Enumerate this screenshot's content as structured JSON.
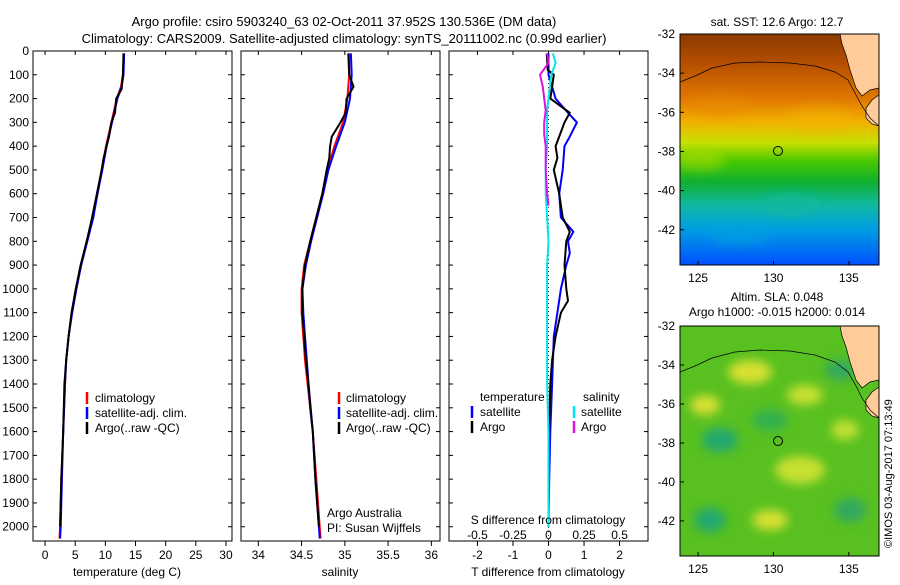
{
  "header": {
    "title_line1": "Argo profile: csiro 5903240_63 02-Oct-2011 37.952S 130.536E (DM data)",
    "title_line2": "Climatology: CARS2009. Satellite-adjusted climatology: synTS_20111002.nc (0.99d earlier)"
  },
  "colors": {
    "climatology": "#ff0000",
    "satellite": "#0000ff",
    "argo": "#000000",
    "sal_satellite": "#00e5ee",
    "sal_argo": "#e010e0",
    "land": "#ffcc99"
  },
  "chart_data": [
    {
      "type": "line",
      "title": "",
      "xlabel": "temperature (deg C)",
      "ylabel": "",
      "xlim": [
        -2,
        31
      ],
      "ylim": [
        2060,
        0
      ],
      "xticks": [
        "0",
        "5",
        "10",
        "15",
        "20",
        "25",
        "30"
      ],
      "xtick_values": [
        0,
        5,
        10,
        15,
        20,
        25,
        30
      ],
      "yticks": [
        "0",
        "100",
        "200",
        "300",
        "400",
        "500",
        "600",
        "700",
        "800",
        "900",
        "1000",
        "1100",
        "1200",
        "1300",
        "1400",
        "1500",
        "1600",
        "1700",
        "1800",
        "1900",
        "2000"
      ],
      "legend": [
        "climatology",
        "satellite-adj. clim.",
        "Argo(..raw -QC)"
      ],
      "series": [
        {
          "name": "climatology",
          "color": "#ff0000",
          "depth": [
            10,
            100,
            150,
            200,
            300,
            400,
            500,
            600,
            700,
            800,
            900,
            1000,
            1100,
            1200,
            1300,
            1400,
            1600,
            1800,
            2000,
            2050
          ],
          "values": [
            13.1,
            12.9,
            12.6,
            11.9,
            11.0,
            10.1,
            9.4,
            8.7,
            7.9,
            6.9,
            6.0,
            5.1,
            4.4,
            3.9,
            3.5,
            3.3,
            3.0,
            2.7,
            2.5,
            2.4
          ]
        },
        {
          "name": "satellite-adj. clim.",
          "color": "#0000ff",
          "depth": [
            10,
            100,
            150,
            200,
            300,
            400,
            500,
            600,
            700,
            800,
            900,
            1000,
            1100,
            1200,
            1300,
            1400,
            1600,
            1800,
            2000,
            2050
          ],
          "values": [
            13.1,
            13.0,
            12.7,
            12.0,
            11.1,
            10.2,
            9.5,
            8.7,
            8.0,
            7.0,
            6.0,
            5.2,
            4.5,
            3.9,
            3.5,
            3.3,
            3.0,
            2.8,
            2.6,
            2.5
          ]
        },
        {
          "name": "Argo(..raw -QC)",
          "color": "#000000",
          "depth": [
            10,
            100,
            160,
            200,
            260,
            300,
            360,
            400,
            450,
            500,
            550,
            600,
            700,
            800,
            900,
            1000,
            1100,
            1200,
            1300,
            1400,
            1600,
            1800,
            2000
          ],
          "values": [
            13.0,
            12.9,
            12.7,
            11.8,
            11.6,
            11.0,
            10.6,
            10.2,
            9.7,
            9.4,
            9.0,
            8.6,
            7.8,
            6.9,
            5.9,
            5.1,
            4.4,
            3.9,
            3.5,
            3.2,
            3.0,
            2.7,
            2.5
          ]
        }
      ]
    },
    {
      "type": "line",
      "title": "",
      "xlabel": "salinity",
      "ylabel": "",
      "xlim": [
        33.8,
        36.1
      ],
      "ylim": [
        2060,
        0
      ],
      "xticks": [
        "34",
        "34.5",
        "35",
        "35.5",
        "36"
      ],
      "xtick_values": [
        34,
        34.5,
        35,
        35.5,
        36
      ],
      "legend": [
        "climatology",
        "satellite-adj. clim.",
        "Argo(..raw -QC)"
      ],
      "annotation_line1": "Argo Australia",
      "annotation_line2": "PI: Susan Wijffels",
      "series": [
        {
          "name": "climatology",
          "color": "#ff0000",
          "depth": [
            10,
            100,
            200,
            300,
            400,
            500,
            600,
            700,
            800,
            900,
            1000,
            1100,
            1200,
            1300,
            1400,
            1500,
            1600,
            1800,
            2000,
            2050
          ],
          "values": [
            35.05,
            35.05,
            35.03,
            34.98,
            34.88,
            34.8,
            34.74,
            34.67,
            34.6,
            34.53,
            34.5,
            34.5,
            34.52,
            34.54,
            34.57,
            34.6,
            34.63,
            34.67,
            34.71,
            34.72
          ]
        },
        {
          "name": "satellite-adj. clim.",
          "color": "#0000ff",
          "depth": [
            10,
            100,
            200,
            300,
            400,
            500,
            600,
            700,
            800,
            900,
            1000,
            1100,
            1200,
            1300,
            1400,
            1500,
            1600,
            1800,
            2000,
            2050
          ],
          "values": [
            35.07,
            35.08,
            35.06,
            35.0,
            34.9,
            34.81,
            34.75,
            34.68,
            34.61,
            34.55,
            34.51,
            34.52,
            34.54,
            34.56,
            34.58,
            34.6,
            34.63,
            34.66,
            34.7,
            34.71
          ]
        },
        {
          "name": "Argo(..raw -QC)",
          "color": "#000000",
          "depth": [
            10,
            100,
            150,
            200,
            260,
            300,
            360,
            400,
            450,
            500,
            600,
            700,
            800,
            900,
            1000,
            1100,
            1200,
            1300,
            1400,
            1600,
            1800,
            2000
          ],
          "values": [
            35.04,
            35.05,
            35.1,
            35.02,
            35.01,
            34.95,
            34.85,
            34.83,
            34.82,
            34.79,
            34.74,
            34.67,
            34.6,
            34.54,
            34.51,
            34.51,
            34.53,
            34.55,
            34.58,
            34.63,
            34.66,
            34.7
          ]
        }
      ]
    },
    {
      "type": "line",
      "title": "",
      "xlabel": "T difference from climatology",
      "xlabel_top": "S difference from climatology",
      "ylabel": "",
      "xlim": [
        -2.8,
        2.8
      ],
      "ylim": [
        2060,
        0
      ],
      "xticks": [
        "-2",
        "-1",
        "0",
        "1",
        "2"
      ],
      "xtick_values": [
        -2,
        -1,
        0,
        1,
        2
      ],
      "top_xticks": [
        "-0.5",
        "-0.25",
        "0",
        "0.25",
        "0.5"
      ],
      "top_xtick_values": [
        -0.5,
        -0.25,
        0,
        0.25,
        0.5
      ],
      "legend_temperature_title": "temperature",
      "legend_salinity_title": "salinity",
      "legend_temperature": [
        "satellite",
        "Argo"
      ],
      "legend_salinity": [
        "satellite",
        "Argo"
      ],
      "series": [
        {
          "name": "T satellite",
          "color": "#0000ff",
          "depth": [
            10,
            100,
            150,
            200,
            260,
            300,
            360,
            400,
            500,
            600,
            700,
            760,
            800,
            850,
            900,
            1000,
            1100,
            1200,
            1400,
            1600,
            1800,
            2000
          ],
          "values": [
            0.0,
            0.0,
            0.1,
            0.2,
            0.55,
            0.8,
            0.6,
            0.45,
            0.4,
            0.3,
            0.35,
            0.7,
            0.55,
            0.6,
            0.5,
            0.35,
            0.25,
            0.15,
            0.1,
            0.05,
            0.02,
            0.0
          ]
        },
        {
          "name": "T Argo",
          "color": "#000000",
          "depth": [
            10,
            80,
            100,
            150,
            200,
            260,
            300,
            360,
            400,
            450,
            500,
            600,
            700,
            760,
            800,
            900,
            1000,
            1050,
            1100,
            1200,
            1300,
            1400,
            1600,
            1800,
            2000
          ],
          "values": [
            -0.05,
            -0.02,
            0.15,
            0.1,
            0.05,
            0.6,
            0.45,
            0.3,
            0.2,
            0.25,
            0.15,
            0.3,
            0.4,
            0.6,
            0.5,
            0.45,
            0.5,
            0.55,
            0.35,
            0.2,
            0.1,
            0.05,
            0.02,
            0.0,
            0.0
          ]
        },
        {
          "name": "S satellite",
          "color": "#00e5ee",
          "depth": [
            10,
            50,
            100,
            150,
            200,
            250,
            300,
            400,
            500,
            600,
            700,
            800,
            900,
            1000,
            1200,
            1400,
            1600,
            1800,
            2000
          ],
          "values": [
            0.03,
            0.05,
            0.02,
            0.01,
            0.0,
            -0.01,
            -0.01,
            -0.01,
            -0.02,
            -0.02,
            -0.01,
            0.0,
            -0.01,
            -0.01,
            -0.01,
            -0.01,
            0.0,
            0.0,
            0.0
          ]
        },
        {
          "name": "S Argo",
          "color": "#e010e0",
          "depth": [
            10,
            50,
            100,
            150,
            200,
            250,
            300,
            350,
            400,
            500,
            600,
            650
          ],
          "values": [
            -0.01,
            0.0,
            -0.06,
            -0.04,
            -0.03,
            -0.02,
            -0.03,
            -0.03,
            -0.02,
            -0.02,
            -0.01,
            0.0
          ]
        }
      ]
    }
  ],
  "maps": {
    "sst": {
      "title": "sat. SST: 12.6  Argo: 12.7",
      "xticks": [
        "125",
        "130",
        "135"
      ],
      "yticks": [
        "-32",
        "-34",
        "-36",
        "-38",
        "-40",
        "-42"
      ]
    },
    "sla": {
      "title_line1": "Altim. SLA: 0.048",
      "title_line2": "Argo h1000: -0.015 h2000: 0.014",
      "xticks": [
        "125",
        "130",
        "135"
      ],
      "yticks": [
        "-32",
        "-34",
        "-36",
        "-38",
        "-40",
        "-42"
      ]
    }
  },
  "watermark": "©IMOS 03-Aug-2017 07:13:49"
}
